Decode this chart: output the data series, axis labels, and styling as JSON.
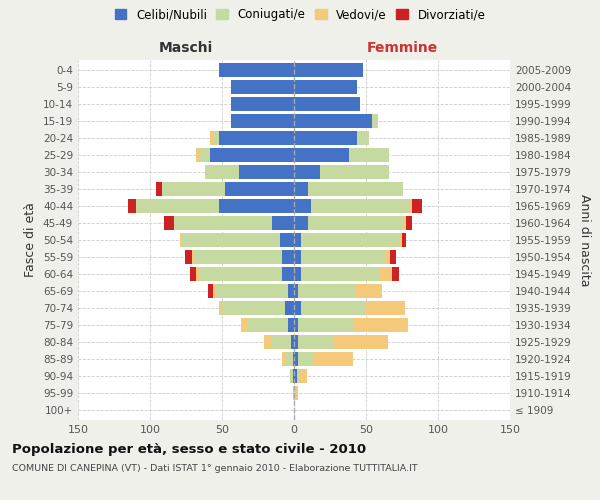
{
  "age_groups": [
    "100+",
    "95-99",
    "90-94",
    "85-89",
    "80-84",
    "75-79",
    "70-74",
    "65-69",
    "60-64",
    "55-59",
    "50-54",
    "45-49",
    "40-44",
    "35-39",
    "30-34",
    "25-29",
    "20-24",
    "15-19",
    "10-14",
    "5-9",
    "0-4"
  ],
  "birth_years": [
    "≤ 1909",
    "1910-1914",
    "1915-1919",
    "1920-1924",
    "1925-1929",
    "1930-1934",
    "1935-1939",
    "1940-1944",
    "1945-1949",
    "1950-1954",
    "1955-1959",
    "1960-1964",
    "1965-1969",
    "1970-1974",
    "1975-1979",
    "1980-1984",
    "1985-1989",
    "1990-1994",
    "1995-1999",
    "2000-2004",
    "2005-2009"
  ],
  "males": {
    "celibi": [
      0,
      0,
      1,
      1,
      2,
      4,
      6,
      4,
      8,
      8,
      10,
      15,
      52,
      48,
      38,
      58,
      52,
      44,
      44,
      44,
      52
    ],
    "coniugati": [
      0,
      1,
      2,
      5,
      14,
      28,
      44,
      50,
      58,
      62,
      68,
      68,
      58,
      44,
      24,
      8,
      4,
      0,
      0,
      0,
      0
    ],
    "vedovi": [
      0,
      0,
      0,
      2,
      5,
      5,
      2,
      2,
      2,
      1,
      1,
      0,
      0,
      0,
      0,
      2,
      2,
      0,
      0,
      0,
      0
    ],
    "divorziati": [
      0,
      0,
      0,
      0,
      0,
      0,
      0,
      4,
      4,
      5,
      0,
      7,
      5,
      4,
      0,
      0,
      0,
      0,
      0,
      0,
      0
    ]
  },
  "females": {
    "nubili": [
      0,
      0,
      2,
      3,
      3,
      3,
      5,
      3,
      5,
      5,
      5,
      10,
      12,
      10,
      18,
      38,
      44,
      54,
      46,
      44,
      48
    ],
    "coniugate": [
      0,
      1,
      2,
      10,
      24,
      38,
      44,
      40,
      55,
      58,
      68,
      66,
      68,
      66,
      48,
      28,
      8,
      4,
      0,
      0,
      0
    ],
    "vedove": [
      0,
      2,
      5,
      28,
      38,
      38,
      28,
      18,
      8,
      4,
      2,
      2,
      2,
      0,
      0,
      0,
      0,
      0,
      0,
      0,
      0
    ],
    "divorziate": [
      0,
      0,
      0,
      0,
      0,
      0,
      0,
      0,
      5,
      4,
      3,
      4,
      7,
      0,
      0,
      0,
      0,
      0,
      0,
      0,
      0
    ]
  },
  "colors": {
    "celibi": "#4472c4",
    "coniugati": "#c5d9a0",
    "vedovi": "#f5c97a",
    "divorziati": "#cc2222"
  },
  "title": "Popolazione per età, sesso e stato civile - 2010",
  "subtitle": "COMUNE DI CANEPINA (VT) - Dati ISTAT 1° gennaio 2010 - Elaborazione TUTTITALIA.IT",
  "xlabel_left": "Maschi",
  "xlabel_right": "Femmine",
  "ylabel_left": "Fasce di età",
  "ylabel_right": "Anni di nascita",
  "xlim": 150,
  "xticks": [
    -150,
    -100,
    -50,
    0,
    50,
    100,
    150
  ],
  "xtick_labels": [
    "150",
    "100",
    "50",
    "0",
    "50",
    "100",
    "150"
  ],
  "legend_labels": [
    "Celibi/Nubili",
    "Coniugati/e",
    "Vedovi/e",
    "Divorziati/e"
  ],
  "background_color": "#f0f0eb",
  "plot_bg": "#ffffff"
}
